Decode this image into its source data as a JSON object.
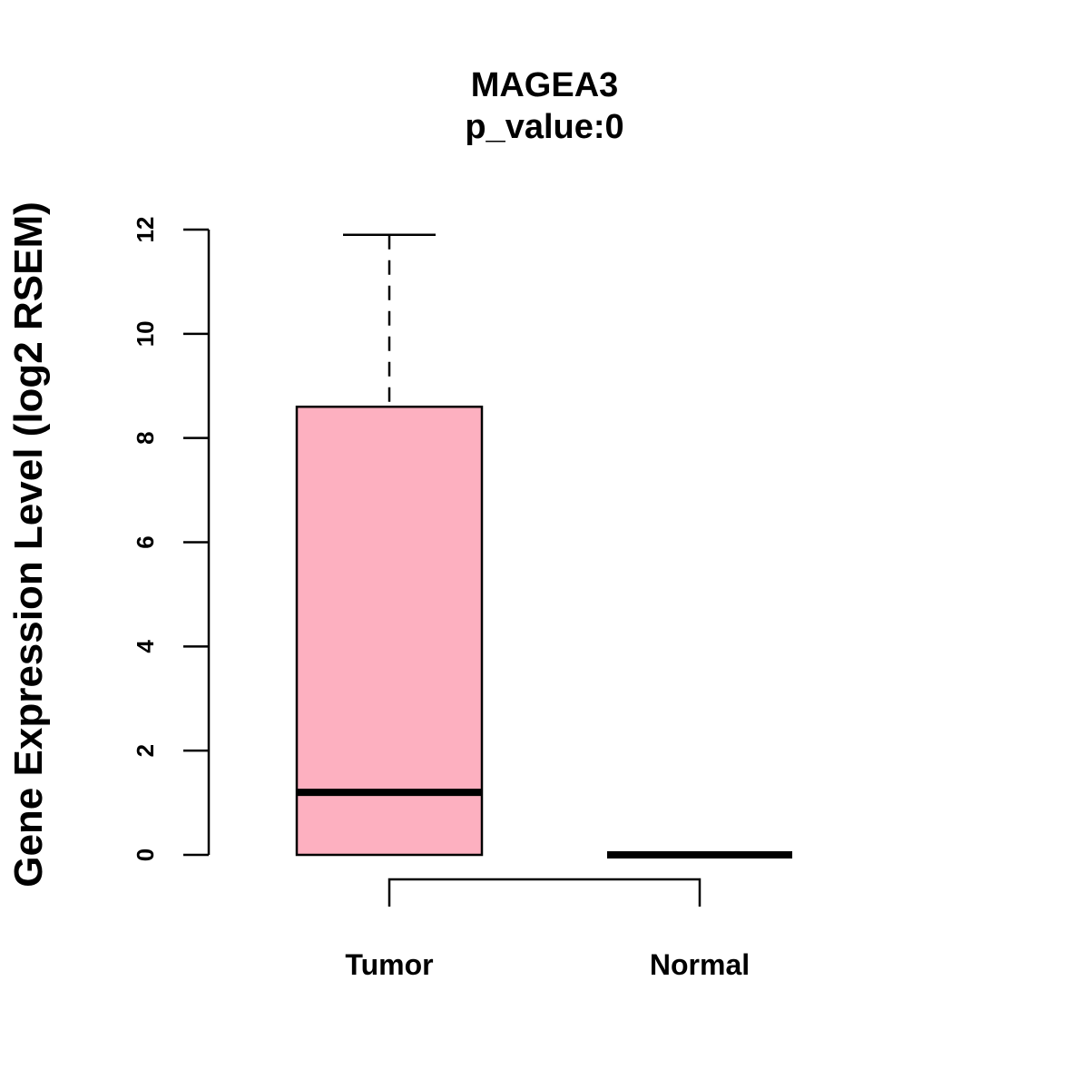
{
  "chart_data": {
    "type": "boxplot",
    "title": "MAGEA3",
    "subtitle": "p_value:0",
    "ylabel": "Gene Expression Level (log2 RSEM)",
    "xlabel": "",
    "ylim": [
      0,
      12
    ],
    "yticks": [
      "0",
      "2",
      "4",
      "6",
      "8",
      "10",
      "12"
    ],
    "categories": [
      "Tumor",
      "Normal"
    ],
    "boxes": [
      {
        "category": "Tumor",
        "min": 0,
        "q1": 0,
        "median": 1.2,
        "q3": 8.6,
        "max": 11.9,
        "fill": "#fdb0c0"
      },
      {
        "category": "Normal",
        "min": 0,
        "q1": 0,
        "median": 0,
        "q3": 0,
        "max": 0,
        "fill": "#fdb0c0"
      }
    ],
    "comparison_bracket": [
      "Tumor",
      "Normal"
    ],
    "grid": false
  }
}
